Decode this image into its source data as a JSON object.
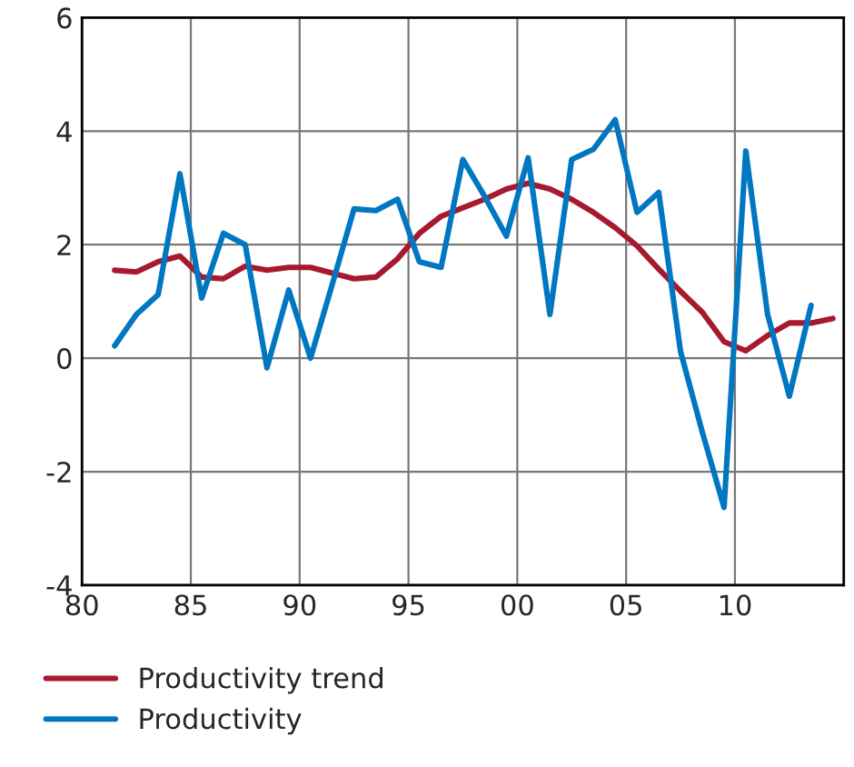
{
  "chart_data": {
    "type": "line",
    "xlim": [
      1980,
      2015
    ],
    "xticks": [
      {
        "value": 1980,
        "label": "80"
      },
      {
        "value": 1985,
        "label": "85"
      },
      {
        "value": 1990,
        "label": "90"
      },
      {
        "value": 1995,
        "label": "95"
      },
      {
        "value": 2000,
        "label": "00"
      },
      {
        "value": 2005,
        "label": "05"
      },
      {
        "value": 2010,
        "label": "10"
      }
    ],
    "ylim": [
      -4,
      6
    ],
    "yticks": [
      -4,
      -2,
      0,
      2,
      4,
      6
    ],
    "grid": true,
    "legend": "bottom left",
    "line_style": "solid",
    "marker": "none",
    "series": [
      {
        "name": "Productivity trend",
        "color": "#a6192e",
        "x": [
          1981.5,
          1982.5,
          1983.5,
          1984.5,
          1985.5,
          1986.5,
          1987.5,
          1988.5,
          1989.5,
          1990.5,
          1991.5,
          1992.5,
          1993.5,
          1994.5,
          1995.5,
          1996.5,
          1997.5,
          1998.5,
          1999.5,
          2000.5,
          2001.5,
          2002.5,
          2003.5,
          2004.5,
          2005.5,
          2006.5,
          2007.5,
          2008.5,
          2009.5,
          2010.5,
          2011.5,
          2012.5,
          2013.5,
          2014.5
        ],
        "values": [
          1.55,
          1.52,
          1.7,
          1.8,
          1.43,
          1.4,
          1.62,
          1.55,
          1.6,
          1.6,
          1.5,
          1.4,
          1.43,
          1.75,
          2.2,
          2.5,
          2.65,
          2.8,
          2.98,
          3.08,
          2.98,
          2.8,
          2.57,
          2.3,
          1.98,
          1.57,
          1.18,
          0.81,
          0.29,
          0.13,
          0.4,
          0.62,
          0.62,
          0.7
        ]
      },
      {
        "name": "Productivity",
        "color": "#0077c0",
        "x": [
          1981.5,
          1982.5,
          1983.5,
          1984.5,
          1985.5,
          1986.5,
          1987.5,
          1988.5,
          1989.5,
          1990.5,
          1991.5,
          1992.5,
          1993.5,
          1994.5,
          1995.5,
          1996.5,
          1997.5,
          1998.5,
          1999.5,
          2000.5,
          2001.5,
          2002.5,
          2003.5,
          2004.5,
          2005.5,
          2006.5,
          2007.5,
          2008.5,
          2009.5,
          2010.5,
          2011.5,
          2012.5,
          2013.5
        ],
        "values": [
          0.22,
          0.77,
          1.12,
          3.25,
          1.06,
          2.2,
          2.0,
          -0.17,
          1.2,
          0,
          1.3,
          2.63,
          2.6,
          2.8,
          1.7,
          1.6,
          3.5,
          2.85,
          2.15,
          3.53,
          0.77,
          3.5,
          3.68,
          4.2,
          2.57,
          2.92,
          0.12,
          -1.3,
          -2.63,
          3.65,
          0.77,
          -0.67,
          0.93
        ]
      }
    ]
  }
}
